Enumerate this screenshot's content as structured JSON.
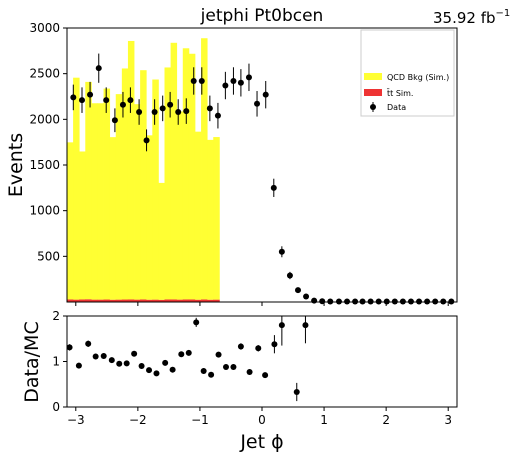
{
  "chart_data": [
    {
      "type": "bar",
      "title": "jetphi  Pt0bcen",
      "lumi": "35.92 fb",
      "lumi_sup": "−1",
      "xlabel": "Jet ϕ",
      "ylabel": "Events",
      "xlim": [
        -3.1416,
        3.1416
      ],
      "ylim": [
        0,
        3000
      ],
      "yticks": [
        500,
        1000,
        1500,
        2000,
        2500,
        3000
      ],
      "xticks": [
        -3,
        -2,
        -1,
        0,
        1,
        2,
        3
      ],
      "legend": {
        "placement": "top-right",
        "entries": [
          {
            "label": "QCD Bkg (Sim.)",
            "color": "#ffff33",
            "kind": "fill"
          },
          {
            "label": "t̄t Sim.",
            "color": "#ee3333",
            "kind": "fill"
          },
          {
            "label": "Data",
            "color": "#000000",
            "kind": "marker"
          }
        ]
      },
      "bin_edges_range": [
        -3.1416,
        3.1416
      ],
      "n_bins": 64,
      "series": [
        {
          "name": "QCD Bkg (Sim.)",
          "color": "#ffff33",
          "values": [
            1720,
            2430,
            1620,
            2380,
            2150,
            2150,
            2310,
            1780,
            2250,
            2530,
            2830,
            2140,
            2510,
            1800,
            2410,
            1280,
            2540,
            2810,
            2060,
            2750,
            2690,
            1840,
            2860,
            1750,
            1780,
            0,
            0,
            0,
            0,
            0,
            0,
            0,
            0,
            0,
            0,
            0,
            0,
            0,
            0,
            0,
            0,
            0,
            0,
            0,
            0,
            0,
            0,
            0,
            0,
            0,
            0,
            0,
            0,
            0,
            0,
            0,
            0,
            0,
            0,
            0,
            0,
            0,
            0,
            0
          ]
        },
        {
          "name": "t̄t Sim.",
          "color": "#ee3333",
          "values": [
            28,
            26,
            28,
            30,
            26,
            26,
            27,
            25,
            26,
            27,
            28,
            26,
            28,
            25,
            26,
            24,
            28,
            28,
            26,
            28,
            28,
            25,
            28,
            25,
            26,
            0,
            0,
            0,
            0,
            0,
            0,
            0,
            0,
            0,
            0,
            0,
            0,
            0,
            0,
            0,
            0,
            0,
            0,
            0,
            0,
            0,
            0,
            0,
            0,
            0,
            0,
            0,
            0,
            0,
            0,
            0,
            0,
            0,
            0,
            0,
            0,
            0,
            0,
            0
          ]
        },
        {
          "name": "Data",
          "kind": "points_with_errors",
          "x": [
            -3.04,
            -2.9,
            -2.77,
            -2.63,
            -2.51,
            -2.37,
            -2.24,
            -2.12,
            -1.98,
            -1.86,
            -1.73,
            -1.6,
            -1.48,
            -1.35,
            -1.22,
            -1.1,
            -0.97,
            -0.84,
            -0.71,
            -0.59,
            -0.46,
            -0.34,
            -0.21,
            -0.08,
            0.06,
            0.19,
            0.32,
            0.45,
            0.58,
            0.71,
            0.84,
            0.97,
            1.1,
            1.24,
            1.37,
            1.5,
            1.62,
            1.75,
            1.88,
            2.01,
            2.14,
            2.27,
            2.4,
            2.53,
            2.66,
            2.79,
            2.92,
            3.05
          ],
          "values": [
            2240,
            2210,
            2270,
            2560,
            2210,
            1990,
            2160,
            2210,
            2080,
            1770,
            2080,
            2120,
            2160,
            2080,
            2090,
            2420,
            2420,
            2120,
            2040,
            2370,
            2420,
            2400,
            2460,
            2170,
            2270,
            1250,
            550,
            290,
            130,
            60,
            15,
            8,
            5,
            5,
            5,
            5,
            5,
            5,
            5,
            5,
            5,
            5,
            5,
            5,
            5,
            5,
            5,
            5
          ],
          "errors": [
            140,
            140,
            140,
            160,
            140,
            130,
            140,
            140,
            140,
            120,
            140,
            140,
            140,
            140,
            140,
            150,
            150,
            140,
            140,
            150,
            150,
            150,
            150,
            140,
            150,
            100,
            60,
            40,
            25,
            15,
            8,
            5,
            4,
            4,
            4,
            4,
            4,
            4,
            4,
            4,
            4,
            4,
            4,
            4,
            4,
            4,
            4,
            4
          ]
        }
      ]
    },
    {
      "type": "scatter",
      "xlabel": "Jet ϕ",
      "ylabel": "Data/MC",
      "xlim": [
        -3.1416,
        3.1416
      ],
      "ylim": [
        0,
        2
      ],
      "yticks": [
        0,
        1,
        2
      ],
      "xticks": [
        -3,
        -2,
        -1,
        0,
        1,
        2,
        3
      ],
      "series": [
        {
          "name": "Data/MC",
          "x": [
            -3.1,
            -2.95,
            -2.8,
            -2.68,
            -2.55,
            -2.42,
            -2.3,
            -2.18,
            -2.06,
            -1.94,
            -1.82,
            -1.7,
            -1.56,
            -1.44,
            -1.3,
            -1.18,
            -1.06,
            -0.94,
            -0.82,
            -0.7,
            -0.58,
            -0.46,
            -0.34,
            -0.2,
            -0.06,
            0.05,
            0.2,
            0.32,
            0.56,
            0.7
          ],
          "values": [
            1.31,
            0.91,
            1.39,
            1.11,
            1.12,
            1.03,
            0.95,
            0.96,
            1.17,
            0.9,
            0.81,
            0.74,
            0.97,
            0.82,
            1.16,
            1.19,
            1.86,
            0.79,
            0.71,
            1.15,
            0.88,
            0.88,
            1.33,
            0.77,
            1.29,
            0.7,
            1.38,
            1.8,
            0.33,
            1.8
          ],
          "errors": [
            0.07,
            0.06,
            0.07,
            0.06,
            0.06,
            0.06,
            0.06,
            0.06,
            0.06,
            0.06,
            0.06,
            0.05,
            0.06,
            0.06,
            0.06,
            0.06,
            0.1,
            0.06,
            0.05,
            0.06,
            0.06,
            0.06,
            0.07,
            0.06,
            0.07,
            0.06,
            0.2,
            0.45,
            0.2,
            0.4
          ]
        }
      ]
    }
  ]
}
